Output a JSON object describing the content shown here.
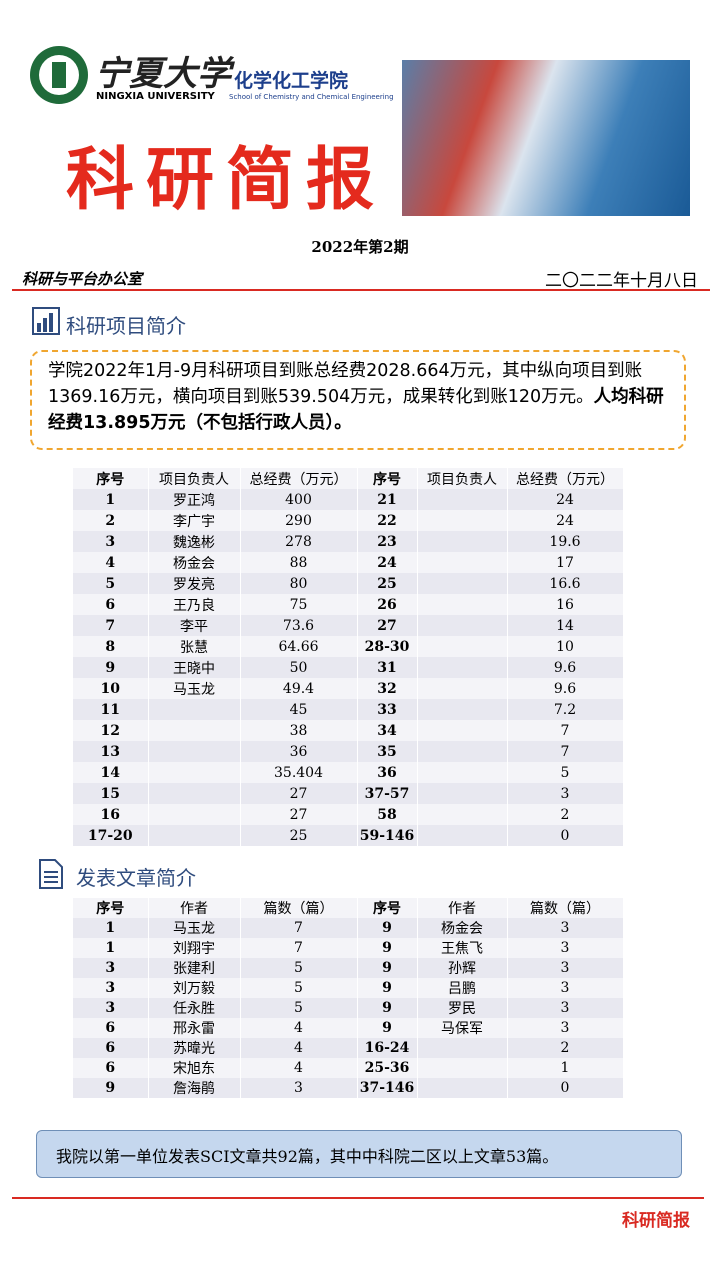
{
  "header": {
    "university_cn": "宁夏大学",
    "university_en": "NINGXIA UNIVERSITY",
    "school_cn": "化学化工学院",
    "school_en": "School of Chemistry and Chemical Engineering",
    "title": "科研简报",
    "issue": "2022年第2期",
    "office": "科研与平台办公室",
    "date": "二〇二二年十月八日"
  },
  "projects": {
    "heading": "科研项目简介",
    "summary_normal": "学院2022年1月-9月科研项目到账总经费2028.664万元，其中纵向项目到账1369.16万元，横向项目到账539.504万元，成果转化到账120万元。",
    "summary_bold": "人均科研经费13.895万元（不包括行政人员）。",
    "table": {
      "headers": [
        "序号",
        "项目负责人",
        "总经费（万元）",
        "序号",
        "项目负责人",
        "总经费（万元）"
      ],
      "rows": [
        [
          1,
          "罗正鸿",
          400,
          21,
          null,
          24
        ],
        [
          2,
          "李广宇",
          290,
          22,
          null,
          24
        ],
        [
          3,
          "魏逸彬",
          278,
          23,
          null,
          19.6
        ],
        [
          4,
          "杨金会",
          88,
          24,
          null,
          17
        ],
        [
          5,
          "罗发亮",
          80,
          25,
          null,
          16.6
        ],
        [
          6,
          "王乃良",
          75,
          26,
          null,
          16
        ],
        [
          7,
          "李平",
          73.6,
          27,
          null,
          14
        ],
        [
          8,
          "张慧",
          64.66,
          "28-30",
          null,
          10
        ],
        [
          9,
          "王晓中",
          50,
          31,
          null,
          9.6
        ],
        [
          10,
          "马玉龙",
          49.4,
          32,
          null,
          9.6
        ],
        [
          11,
          null,
          45,
          33,
          null,
          7.2
        ],
        [
          12,
          null,
          38,
          34,
          null,
          7
        ],
        [
          13,
          null,
          36,
          35,
          null,
          7
        ],
        [
          14,
          null,
          35.404,
          36,
          null,
          5
        ],
        [
          15,
          null,
          27,
          "37-57",
          null,
          3
        ],
        [
          16,
          null,
          27,
          58,
          null,
          2
        ],
        [
          "17-20",
          null,
          25,
          "59-146",
          null,
          0
        ]
      ]
    }
  },
  "papers": {
    "heading": "发表文章简介",
    "table": {
      "headers": [
        "序号",
        "作者",
        "篇数（篇）",
        "序号",
        "作者",
        "篇数（篇）"
      ],
      "rows": [
        [
          1,
          "马玉龙",
          7,
          9,
          "杨金会",
          3
        ],
        [
          1,
          "刘翔宇",
          7,
          9,
          "王焦飞",
          3
        ],
        [
          3,
          "张建利",
          5,
          9,
          "孙辉",
          3
        ],
        [
          3,
          "刘万毅",
          5,
          9,
          "吕鹏",
          3
        ],
        [
          3,
          "任永胜",
          5,
          9,
          "罗民",
          3
        ],
        [
          6,
          "邢永雷",
          4,
          9,
          "马保军",
          3
        ],
        [
          6,
          "苏暐光",
          4,
          "16-24",
          null,
          2
        ],
        [
          6,
          "宋旭东",
          4,
          "25-36",
          null,
          1
        ],
        [
          9,
          "詹海鹃",
          3,
          "37-146",
          null,
          0
        ]
      ]
    },
    "note": "我院以第一单位发表SCI文章共92篇，其中中科院二区以上文章53篇。"
  },
  "footer": "科研简报"
}
